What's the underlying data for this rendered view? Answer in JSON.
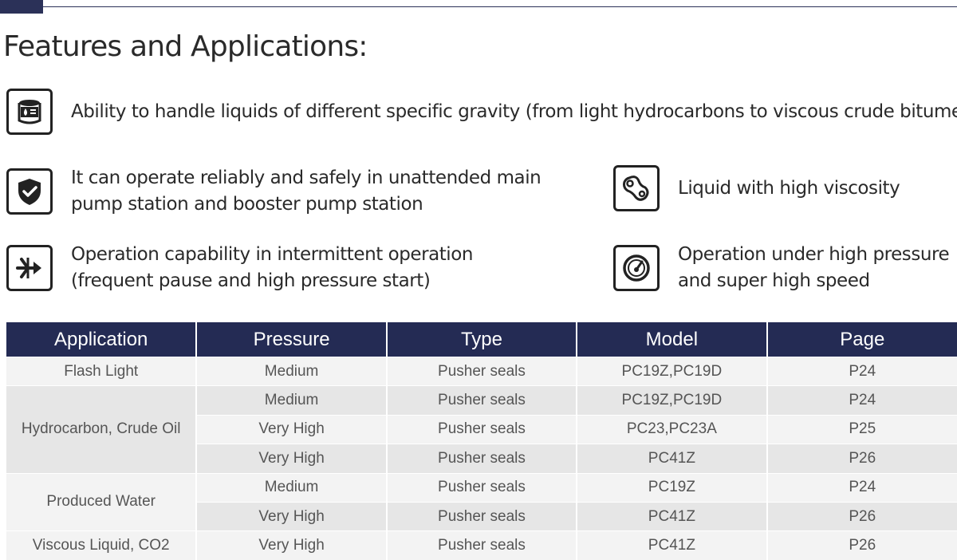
{
  "page": {
    "title": "Features and Applications:"
  },
  "features": [
    {
      "icon": "oil-barrel-icon",
      "lines": [
        "Ability to handle liquids of different specific gravity (from light hydrocarbons to viscous crude bitumen)"
      ]
    },
    {
      "icon": "shield-check-icon",
      "lines": [
        "It can operate reliably and safely in unattended main",
        "pump station and booster pump station"
      ]
    },
    {
      "icon": "viscous-liquid-icon",
      "lines": [
        "Liquid with high viscosity"
      ]
    },
    {
      "icon": "intermittent-flow-icon",
      "lines": [
        "Operation capability in intermittent operation",
        "(frequent pause and high pressure start)"
      ]
    },
    {
      "icon": "pressure-gauge-icon",
      "lines": [
        "Operation under high pressure",
        "and super high speed"
      ]
    }
  ],
  "table": {
    "headers": [
      "Application",
      "Pressure",
      "Type",
      "Model",
      "Page"
    ],
    "groups": [
      {
        "application": "Flash Light",
        "rows": [
          {
            "pressure": "Medium",
            "type": "Pusher seals",
            "model": "PC19Z,PC19D",
            "page": "P24"
          }
        ]
      },
      {
        "application": "Hydrocarbon, Crude Oil",
        "rows": [
          {
            "pressure": "Medium",
            "type": "Pusher seals",
            "model": "PC19Z,PC19D",
            "page": "P24"
          },
          {
            "pressure": "Very High",
            "type": "Pusher seals",
            "model": "PC23,PC23A",
            "page": "P25"
          },
          {
            "pressure": "Very High",
            "type": "Pusher seals",
            "model": "PC41Z",
            "page": "P26"
          }
        ]
      },
      {
        "application": "Produced Water",
        "rows": [
          {
            "pressure": "Medium",
            "type": "Pusher seals",
            "model": "PC19Z",
            "page": "P24"
          },
          {
            "pressure": "Very High",
            "type": "Pusher seals",
            "model": "PC41Z",
            "page": "P26"
          }
        ]
      },
      {
        "application": "Viscous Liquid, CO2",
        "rows": [
          {
            "pressure": "Very High",
            "type": "Pusher seals",
            "model": "PC41Z",
            "page": "P26"
          }
        ]
      }
    ]
  },
  "colors": {
    "header_bg": "#242b54",
    "row_light": "#f3f3f3",
    "row_dark": "#e6e6e6",
    "accent_bar": "#2b3158"
  }
}
